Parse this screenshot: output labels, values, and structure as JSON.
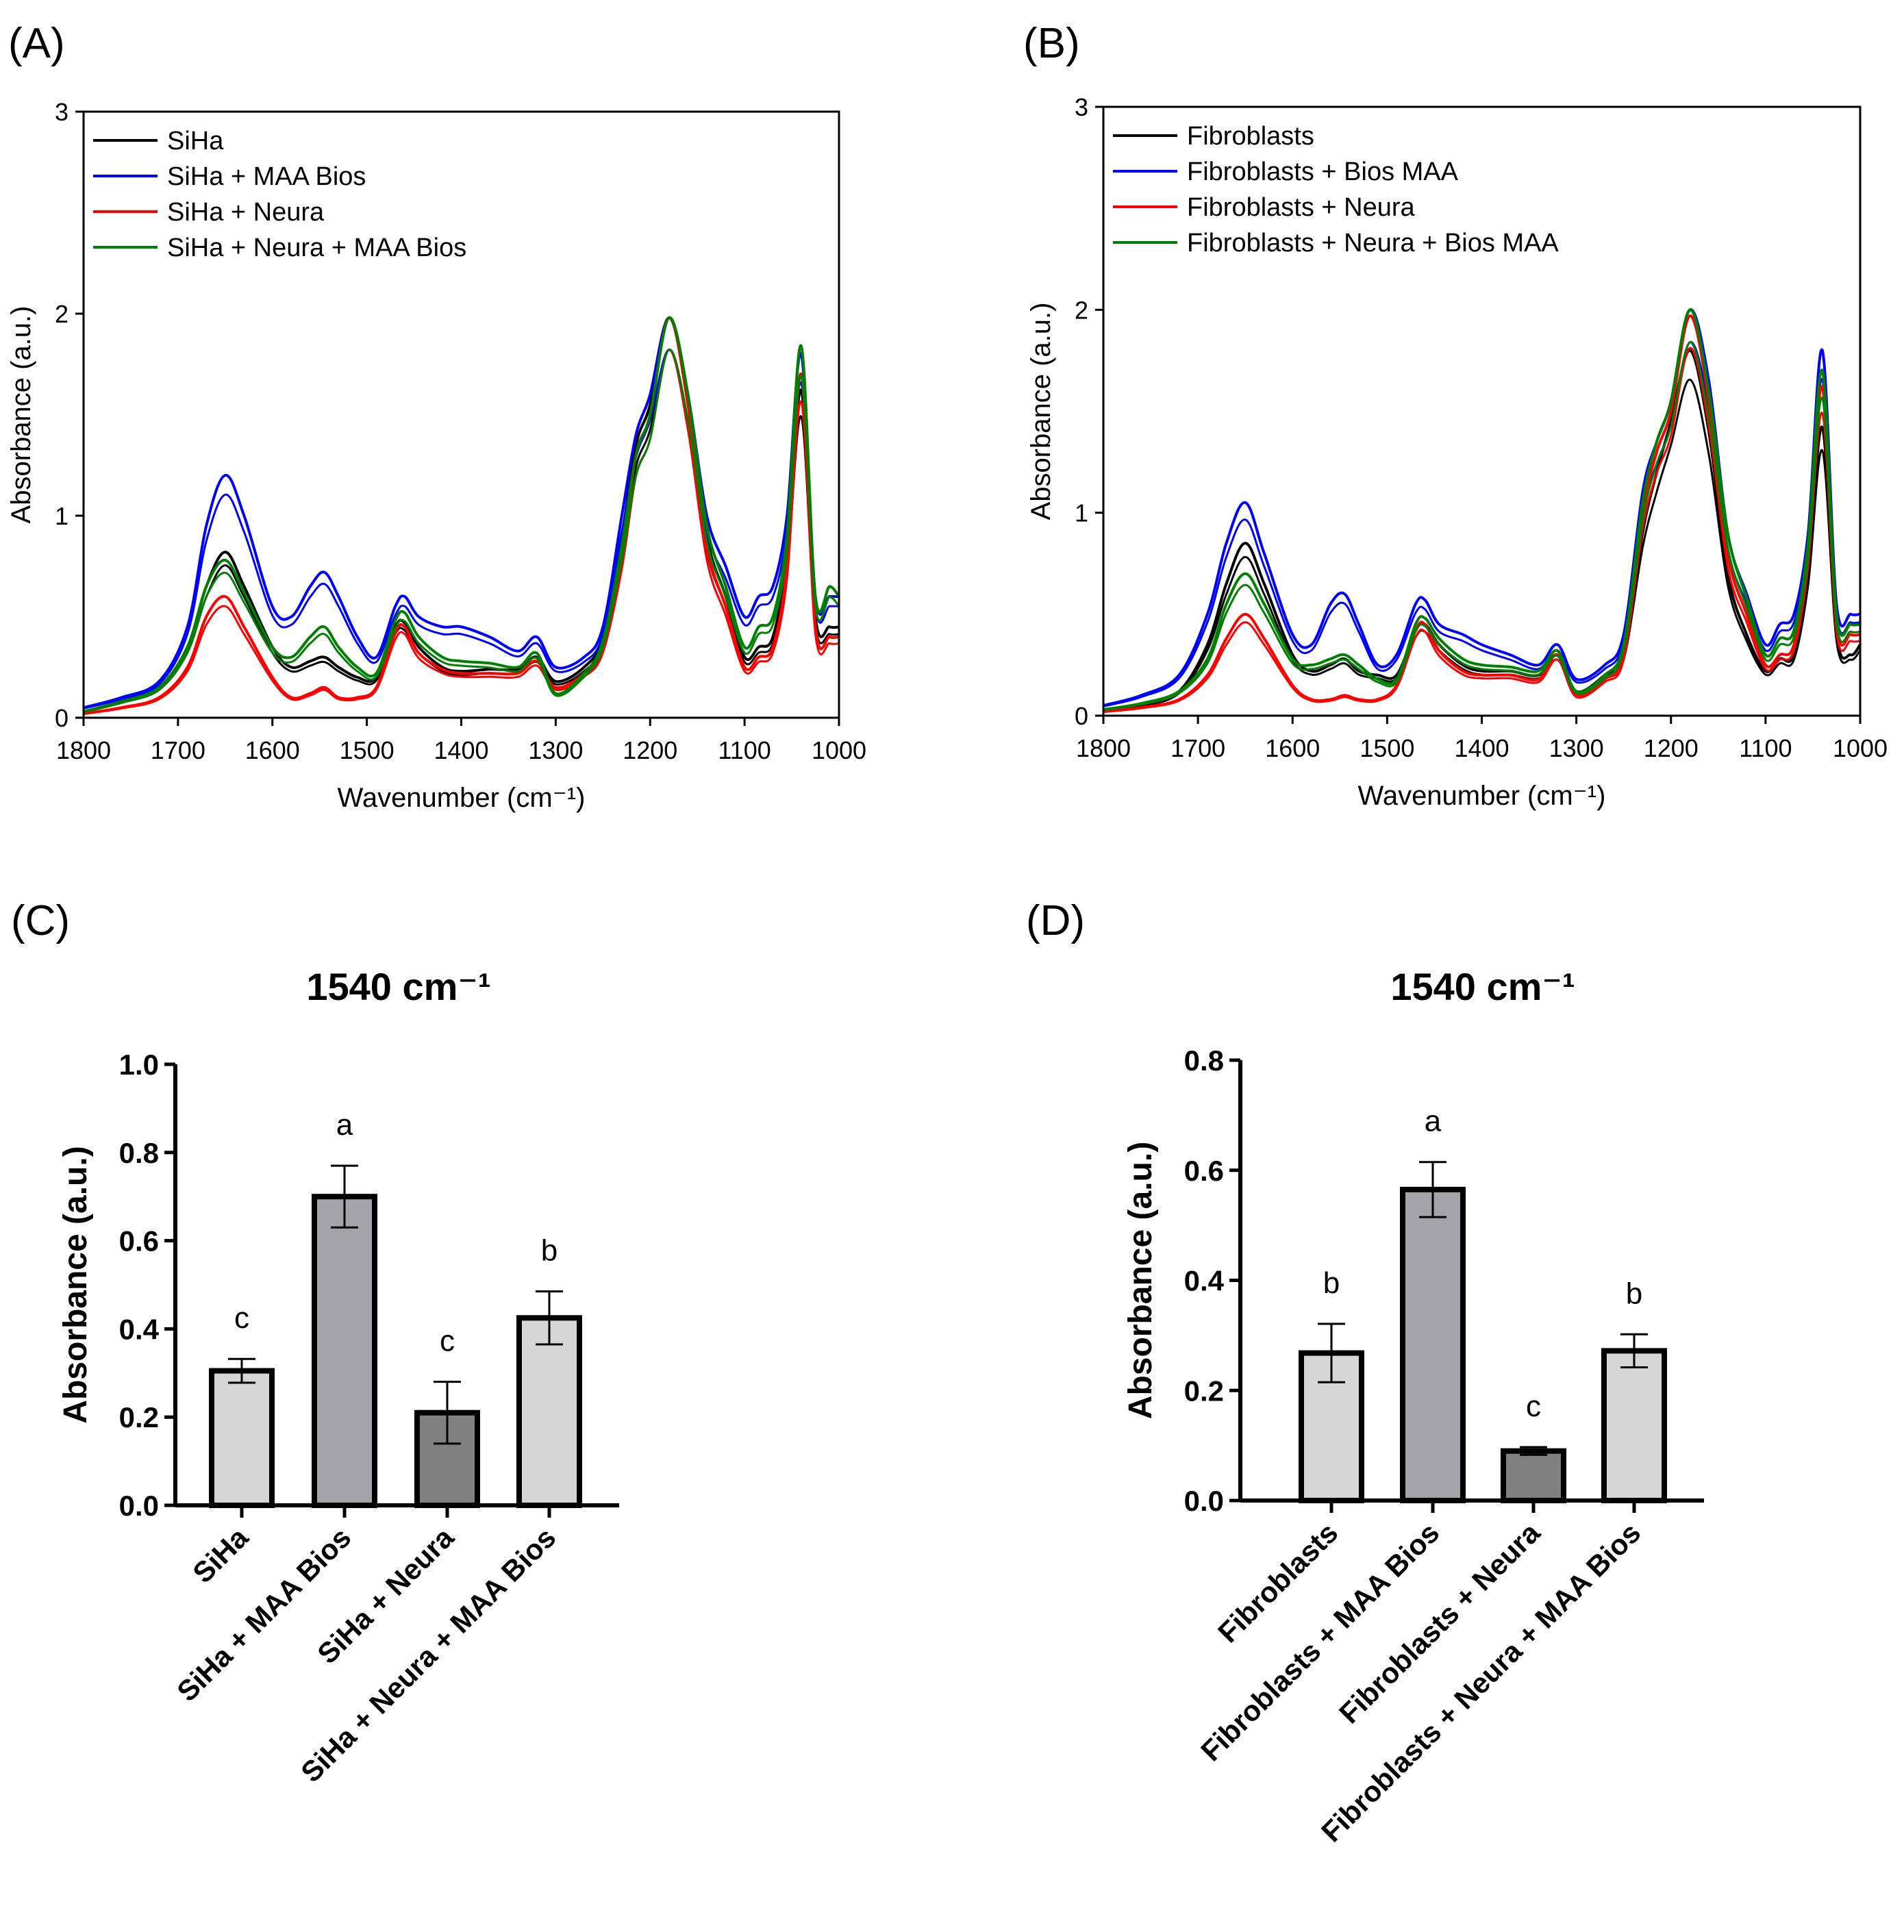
{
  "chart_data": [
    {
      "panel": "(A)",
      "type": "line",
      "xlabel": "Wavenumber (cm⁻¹)",
      "ylabel": "Absorbance (a.u.)",
      "xlim": [
        1800,
        1000
      ],
      "ylim": [
        0,
        3
      ],
      "xticks": [
        1800,
        1700,
        1600,
        1500,
        1400,
        1300,
        1200,
        1100,
        1000
      ],
      "yticks": [
        0,
        1,
        2,
        3
      ],
      "legend_position": "top-left",
      "x": [
        1800,
        1760,
        1720,
        1690,
        1670,
        1650,
        1630,
        1600,
        1580,
        1560,
        1545,
        1530,
        1510,
        1490,
        1470,
        1460,
        1445,
        1420,
        1400,
        1370,
        1340,
        1320,
        1300,
        1270,
        1250,
        1230,
        1215,
        1200,
        1180,
        1160,
        1140,
        1120,
        1100,
        1085,
        1070,
        1055,
        1040,
        1025,
        1010,
        1000
      ],
      "series": [
        {
          "name": "SiHa",
          "color": "#000000",
          "values": [
            0.03,
            0.08,
            0.15,
            0.35,
            0.65,
            0.82,
            0.65,
            0.35,
            0.25,
            0.28,
            0.3,
            0.25,
            0.2,
            0.2,
            0.45,
            0.47,
            0.35,
            0.25,
            0.23,
            0.24,
            0.24,
            0.3,
            0.18,
            0.25,
            0.4,
            0.9,
            1.35,
            1.55,
            1.98,
            1.6,
            0.9,
            0.6,
            0.3,
            0.35,
            0.4,
            0.8,
            1.62,
            0.5,
            0.45,
            0.45
          ]
        },
        {
          "name": "SiHa + MAA Bios",
          "color": "#0000ff",
          "values": [
            0.05,
            0.1,
            0.18,
            0.45,
            0.95,
            1.2,
            1.0,
            0.55,
            0.5,
            0.65,
            0.72,
            0.6,
            0.4,
            0.3,
            0.55,
            0.6,
            0.5,
            0.45,
            0.45,
            0.4,
            0.33,
            0.4,
            0.25,
            0.3,
            0.45,
            1.0,
            1.4,
            1.6,
            1.98,
            1.6,
            1.0,
            0.75,
            0.5,
            0.6,
            0.65,
            1.0,
            1.8,
            0.6,
            0.6,
            0.6
          ]
        },
        {
          "name": "SiHa + Neura",
          "color": "#ff0000",
          "values": [
            0.02,
            0.05,
            0.1,
            0.25,
            0.5,
            0.6,
            0.45,
            0.2,
            0.1,
            0.12,
            0.15,
            0.1,
            0.1,
            0.15,
            0.42,
            0.45,
            0.32,
            0.24,
            0.22,
            0.22,
            0.22,
            0.28,
            0.15,
            0.22,
            0.35,
            0.8,
            1.3,
            1.5,
            1.98,
            1.55,
            0.85,
            0.55,
            0.25,
            0.3,
            0.35,
            0.75,
            1.7,
            0.45,
            0.4,
            0.4
          ]
        },
        {
          "name": "SiHa + Neura + MAA Bios",
          "color": "#008000",
          "values": [
            0.03,
            0.08,
            0.15,
            0.35,
            0.65,
            0.78,
            0.62,
            0.35,
            0.3,
            0.4,
            0.45,
            0.35,
            0.25,
            0.22,
            0.48,
            0.52,
            0.4,
            0.3,
            0.28,
            0.27,
            0.25,
            0.32,
            0.12,
            0.22,
            0.38,
            0.85,
            1.3,
            1.5,
            1.98,
            1.6,
            0.95,
            0.65,
            0.35,
            0.45,
            0.5,
            0.9,
            1.84,
            0.6,
            0.65,
            0.6
          ]
        }
      ]
    },
    {
      "panel": "(B)",
      "type": "line",
      "xlabel": "Wavenumber (cm⁻¹)",
      "ylabel": "Absorbance (a.u.)",
      "xlim": [
        1800,
        1000
      ],
      "ylim": [
        0,
        3
      ],
      "xticks": [
        1800,
        1700,
        1600,
        1500,
        1400,
        1300,
        1200,
        1100,
        1000
      ],
      "yticks": [
        0,
        1,
        2,
        3
      ],
      "legend_position": "top-left",
      "x": [
        1800,
        1760,
        1720,
        1690,
        1670,
        1650,
        1630,
        1600,
        1580,
        1560,
        1545,
        1530,
        1510,
        1490,
        1470,
        1460,
        1445,
        1420,
        1400,
        1370,
        1340,
        1320,
        1300,
        1270,
        1250,
        1230,
        1215,
        1200,
        1180,
        1160,
        1140,
        1120,
        1100,
        1085,
        1070,
        1055,
        1040,
        1025,
        1010,
        1000
      ],
      "series": [
        {
          "name": "Fibroblasts",
          "color": "#000000",
          "values": [
            0.02,
            0.05,
            0.12,
            0.35,
            0.65,
            0.85,
            0.65,
            0.3,
            0.22,
            0.25,
            0.28,
            0.22,
            0.2,
            0.2,
            0.42,
            0.45,
            0.35,
            0.25,
            0.22,
            0.22,
            0.2,
            0.3,
            0.12,
            0.2,
            0.3,
            0.9,
            1.2,
            1.45,
            1.8,
            1.4,
            0.7,
            0.4,
            0.22,
            0.28,
            0.3,
            0.7,
            1.42,
            0.4,
            0.3,
            0.35
          ]
        },
        {
          "name": "Fibroblasts + Bios MAA",
          "color": "#0000ff",
          "values": [
            0.05,
            0.1,
            0.2,
            0.5,
            0.85,
            1.05,
            0.8,
            0.4,
            0.35,
            0.55,
            0.6,
            0.45,
            0.25,
            0.3,
            0.55,
            0.57,
            0.45,
            0.4,
            0.35,
            0.3,
            0.25,
            0.35,
            0.18,
            0.25,
            0.4,
            1.1,
            1.35,
            1.55,
            2.0,
            1.65,
            0.9,
            0.6,
            0.35,
            0.45,
            0.5,
            0.9,
            1.8,
            0.55,
            0.5,
            0.5
          ]
        },
        {
          "name": "Fibroblasts + Neura",
          "color": "#ff0000",
          "values": [
            0.02,
            0.04,
            0.08,
            0.2,
            0.38,
            0.5,
            0.38,
            0.15,
            0.08,
            0.08,
            0.1,
            0.08,
            0.08,
            0.15,
            0.42,
            0.45,
            0.32,
            0.22,
            0.2,
            0.2,
            0.18,
            0.3,
            0.1,
            0.18,
            0.3,
            1.0,
            1.3,
            1.5,
            1.97,
            1.55,
            0.8,
            0.5,
            0.25,
            0.3,
            0.35,
            0.8,
            1.62,
            0.45,
            0.4,
            0.4
          ]
        },
        {
          "name": "Fibroblasts + Neura + Bios MAA",
          "color": "#008000",
          "values": [
            0.03,
            0.06,
            0.12,
            0.28,
            0.55,
            0.7,
            0.55,
            0.28,
            0.25,
            0.28,
            0.3,
            0.25,
            0.18,
            0.18,
            0.45,
            0.48,
            0.38,
            0.28,
            0.25,
            0.24,
            0.22,
            0.32,
            0.12,
            0.2,
            0.35,
            1.05,
            1.35,
            1.55,
            2.0,
            1.6,
            0.9,
            0.58,
            0.3,
            0.38,
            0.42,
            0.85,
            1.7,
            0.5,
            0.45,
            0.45
          ]
        }
      ]
    },
    {
      "panel": "(C)",
      "type": "bar",
      "title": "1540 cm⁻¹",
      "ylabel": "Absorbance (a.u.)",
      "ylim": [
        0,
        1.0
      ],
      "yticks": [
        "0.0",
        "0.2",
        "0.4",
        "0.6",
        "0.8",
        "1.0"
      ],
      "categories": [
        "SiHa",
        "SiHa + MAA Bios",
        "SiHa + Neura",
        "SiHa + Neura + MAA Bios"
      ],
      "values": [
        0.305,
        0.7,
        0.21,
        0.425
      ],
      "errors": [
        0.027,
        0.07,
        0.07,
        0.06
      ],
      "significance": [
        "c",
        "a",
        "c",
        "b"
      ],
      "colors": [
        "#d6d6d6",
        "#a4a4a8",
        "#808080",
        "#d6d6d6"
      ]
    },
    {
      "panel": "(D)",
      "type": "bar",
      "title": "1540 cm⁻¹",
      "ylabel": "Absorbance (a.u.)",
      "ylim": [
        0,
        0.8
      ],
      "yticks": [
        "0.0",
        "0.2",
        "0.4",
        "0.6",
        "0.8"
      ],
      "categories": [
        "Fibroblasts",
        "Fibroblasts + MAA Bios",
        "Fibroblasts + Neura",
        "Fibroblasts + Neura + MAA Bios"
      ],
      "values": [
        0.268,
        0.565,
        0.09,
        0.272
      ],
      "errors": [
        0.053,
        0.05,
        0.007,
        0.03
      ],
      "significance": [
        "b",
        "a",
        "c",
        "b"
      ],
      "colors": [
        "#d6d6d6",
        "#a4a4a8",
        "#808080",
        "#d6d6d6"
      ]
    }
  ]
}
